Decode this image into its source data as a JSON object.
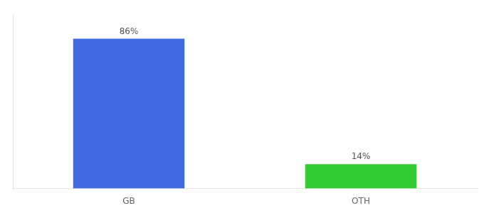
{
  "chart_data": {
    "type": "bar",
    "categories": [
      "GB",
      "OTH"
    ],
    "values": [
      86,
      14
    ],
    "value_labels": [
      "86%",
      "14%"
    ],
    "colors": [
      "#4169e1",
      "#33cc33"
    ],
    "ylim": [
      0,
      100
    ],
    "grid": false,
    "data_labels": true,
    "tick_labels": "x"
  }
}
